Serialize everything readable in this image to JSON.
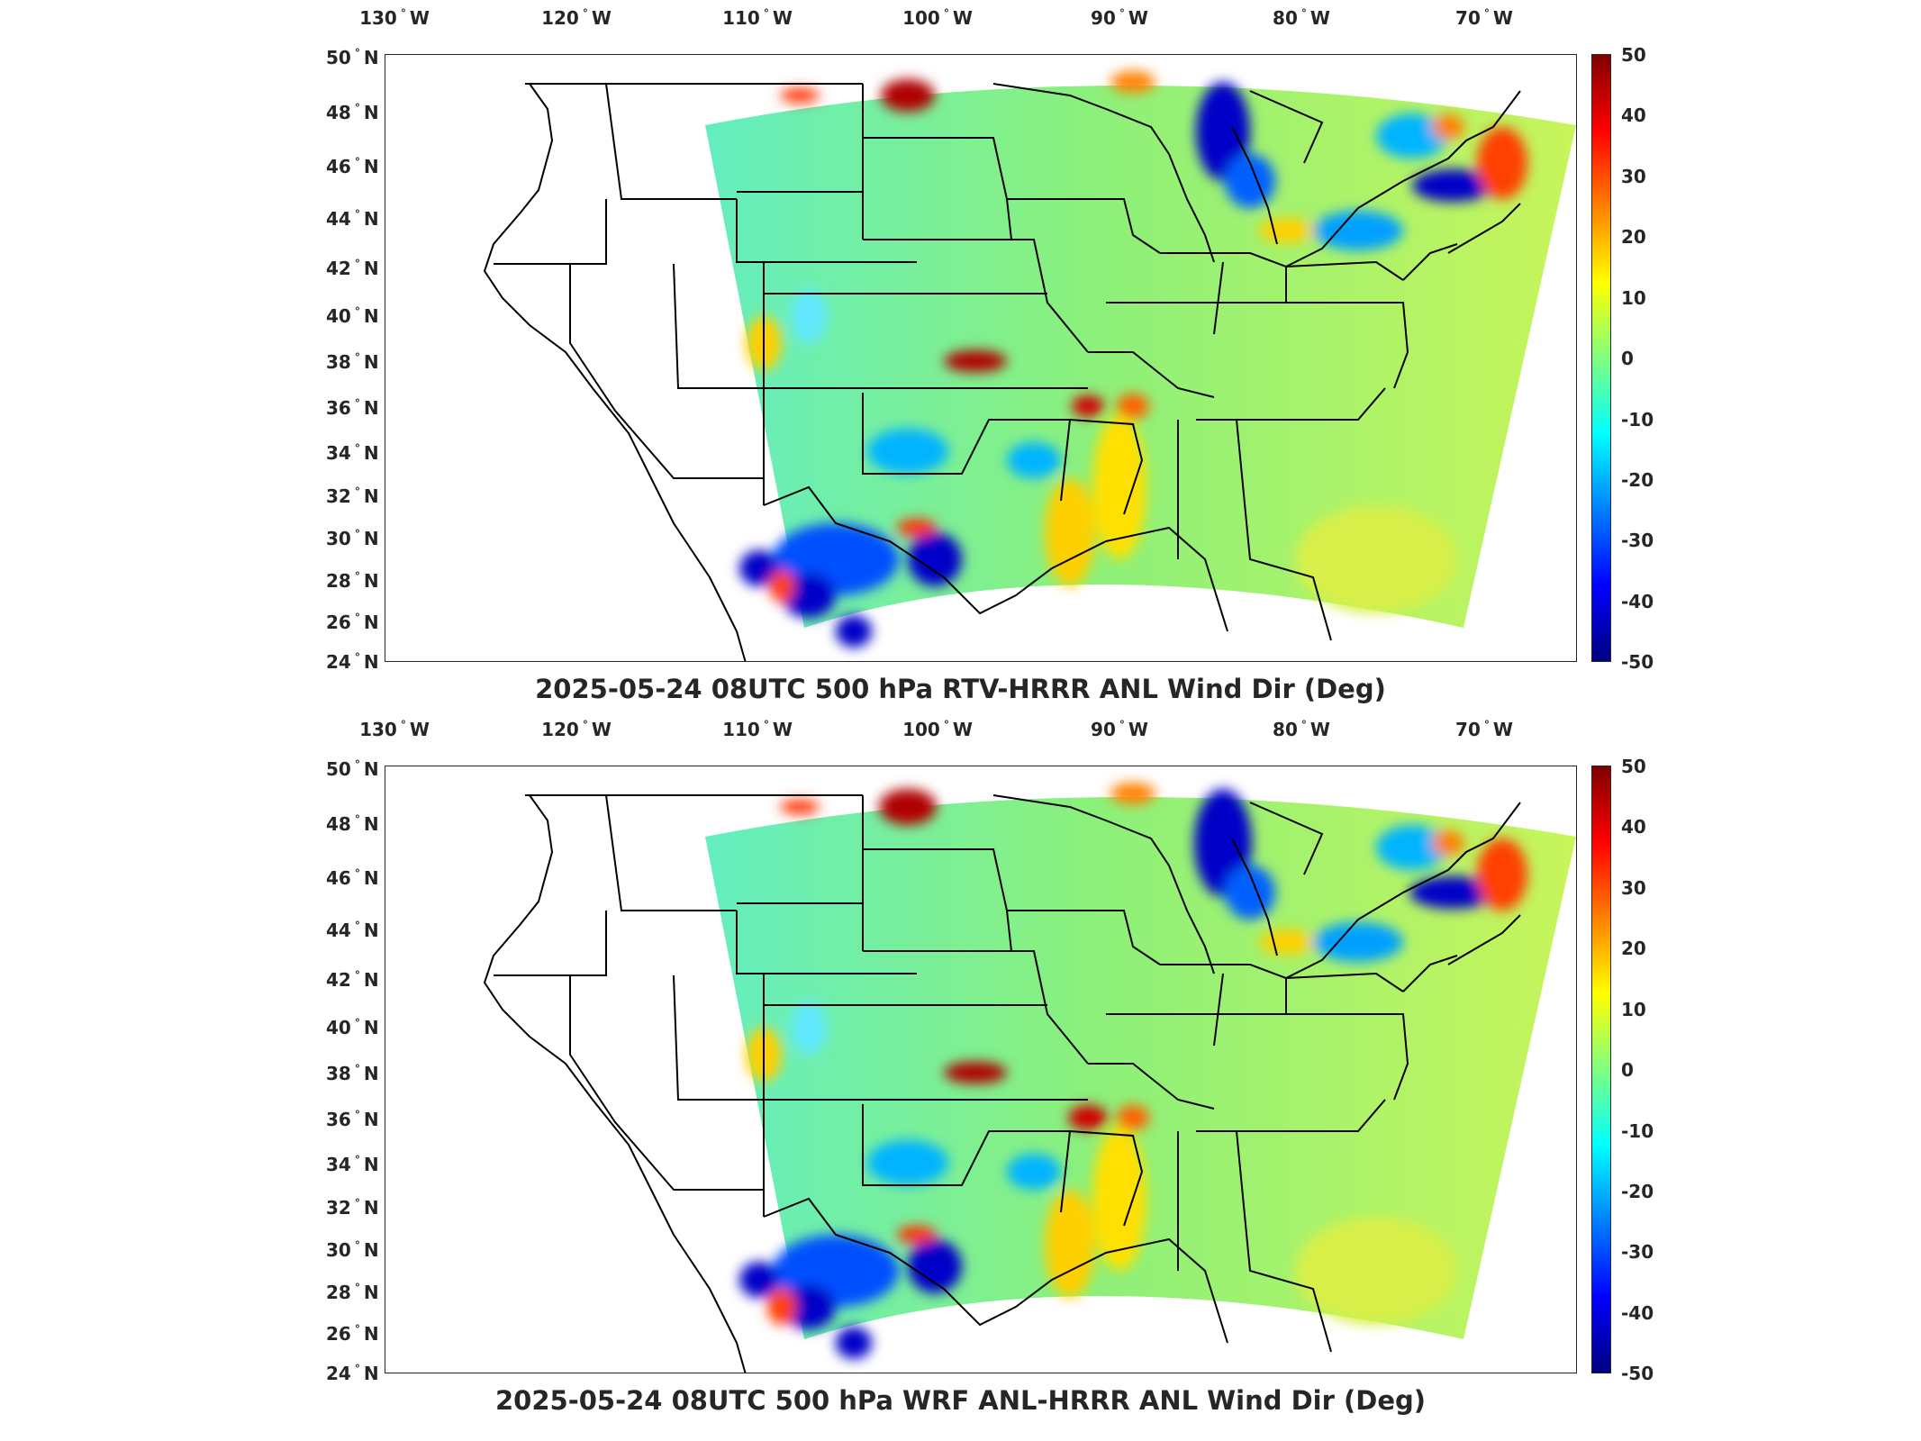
{
  "panels": [
    {
      "title": "2025-05-24 08UTC 500 hPa RTV-HRRR ANL Wind Dir (Deg)",
      "x_ticks": [
        {
          "deg": "130",
          "hem": "W"
        },
        {
          "deg": "120",
          "hem": "W"
        },
        {
          "deg": "110",
          "hem": "W"
        },
        {
          "deg": "100",
          "hem": "W"
        },
        {
          "deg": "90",
          "hem": "W"
        },
        {
          "deg": "80",
          "hem": "W"
        },
        {
          "deg": "70",
          "hem": "W"
        }
      ],
      "y_ticks": [
        {
          "deg": "50",
          "hem": "N"
        },
        {
          "deg": "48",
          "hem": "N"
        },
        {
          "deg": "46",
          "hem": "N"
        },
        {
          "deg": "44",
          "hem": "N"
        },
        {
          "deg": "42",
          "hem": "N"
        },
        {
          "deg": "40",
          "hem": "N"
        },
        {
          "deg": "38",
          "hem": "N"
        },
        {
          "deg": "36",
          "hem": "N"
        },
        {
          "deg": "34",
          "hem": "N"
        },
        {
          "deg": "32",
          "hem": "N"
        },
        {
          "deg": "30",
          "hem": "N"
        },
        {
          "deg": "28",
          "hem": "N"
        },
        {
          "deg": "26",
          "hem": "N"
        },
        {
          "deg": "24",
          "hem": "N"
        }
      ],
      "colorbar": {
        "min": -50,
        "max": 50,
        "ticks": [
          "50",
          "40",
          "30",
          "20",
          "10",
          "0",
          "-10",
          "-20",
          "-30",
          "-40",
          "-50"
        ]
      }
    },
    {
      "title": "2025-05-24 08UTC 500 hPa WRF ANL-HRRR ANL Wind Dir (Deg)",
      "x_ticks": [
        {
          "deg": "130",
          "hem": "W"
        },
        {
          "deg": "120",
          "hem": "W"
        },
        {
          "deg": "110",
          "hem": "W"
        },
        {
          "deg": "100",
          "hem": "W"
        },
        {
          "deg": "90",
          "hem": "W"
        },
        {
          "deg": "80",
          "hem": "W"
        },
        {
          "deg": "70",
          "hem": "W"
        }
      ],
      "y_ticks": [
        {
          "deg": "50",
          "hem": "N"
        },
        {
          "deg": "48",
          "hem": "N"
        },
        {
          "deg": "46",
          "hem": "N"
        },
        {
          "deg": "44",
          "hem": "N"
        },
        {
          "deg": "42",
          "hem": "N"
        },
        {
          "deg": "40",
          "hem": "N"
        },
        {
          "deg": "38",
          "hem": "N"
        },
        {
          "deg": "36",
          "hem": "N"
        },
        {
          "deg": "34",
          "hem": "N"
        },
        {
          "deg": "32",
          "hem": "N"
        },
        {
          "deg": "30",
          "hem": "N"
        },
        {
          "deg": "28",
          "hem": "N"
        },
        {
          "deg": "26",
          "hem": "N"
        },
        {
          "deg": "24",
          "hem": "N"
        }
      ],
      "colorbar": {
        "min": -50,
        "max": 50,
        "ticks": [
          "50",
          "40",
          "30",
          "20",
          "10",
          "0",
          "-10",
          "-20",
          "-30",
          "-40",
          "-50"
        ]
      }
    }
  ],
  "colors": {
    "field_base": "#8cf07a",
    "field_west": "#63eec0",
    "field_east": "#c8f55a",
    "positive_strong": "#b00000",
    "positive_mid": "#ff6000",
    "negative_strong": "#0000c8",
    "negative_mid": "#00b4ff",
    "outline": "#000000"
  }
}
